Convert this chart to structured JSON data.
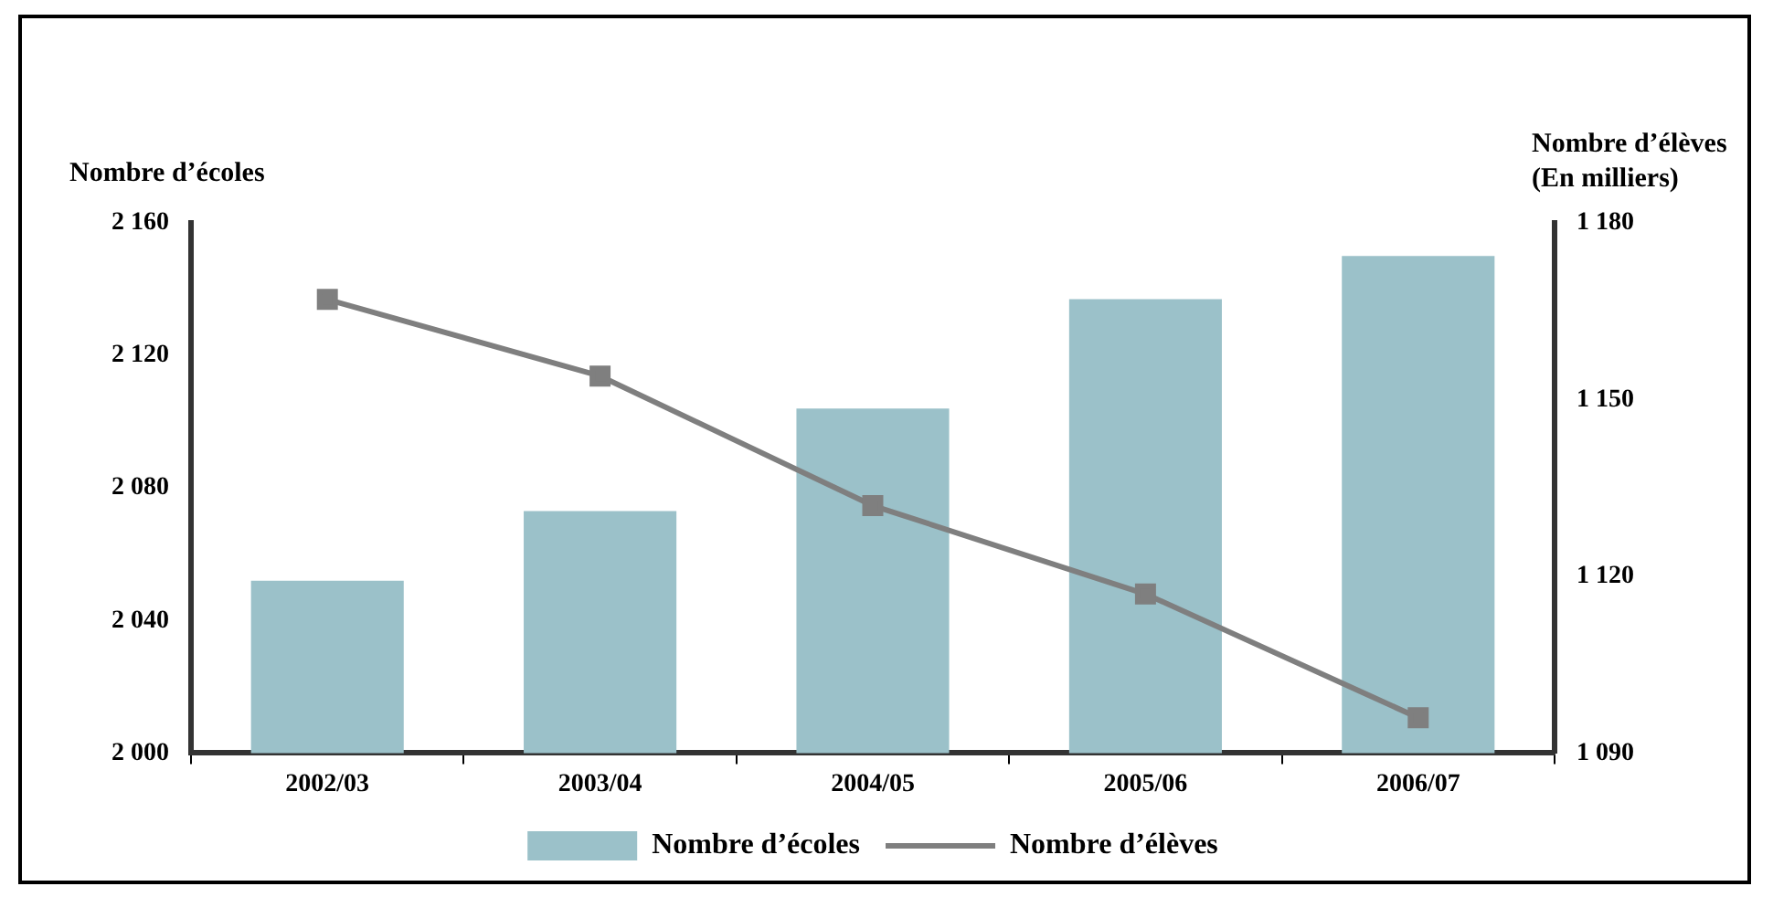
{
  "chart_data": {
    "type": "bar",
    "ylabel": "Nombre d’écoles",
    "y2label": "Nombre d’élèves\n(En milliers)",
    "categories": [
      "2002/03",
      "2003/04",
      "2004/05",
      "2005/06",
      "2006/07"
    ],
    "series": [
      {
        "name": "Nombre d’écoles",
        "color": "#9bc1c9",
        "values": [
          2052,
          2073,
          2104,
          2137,
          2150
        ]
      },
      {
        "name": "Nombre d’élèves",
        "type": "line",
        "axis": "y2",
        "color": "#7f7f7f",
        "values": [
          1167,
          1154,
          1132,
          1117,
          1096
        ]
      }
    ],
    "ylim": [
      2000,
      2160
    ],
    "yticks": [
      {
        "value": 2000,
        "label": "2 000"
      },
      {
        "value": 2040,
        "label": "2 040"
      },
      {
        "value": 2080,
        "label": "2 080"
      },
      {
        "value": 2120,
        "label": "2 120"
      },
      {
        "value": 2160,
        "label": "2 160"
      }
    ],
    "y2lim": [
      1090,
      1180
    ],
    "y2ticks": [
      {
        "value": 1090,
        "label": "1 090"
      },
      {
        "value": 1120,
        "label": "1 120"
      },
      {
        "value": 1150,
        "label": "1 150"
      },
      {
        "value": 1180,
        "label": "1 180"
      }
    ],
    "grid": false,
    "legend": "bottom",
    "marker": "square"
  }
}
